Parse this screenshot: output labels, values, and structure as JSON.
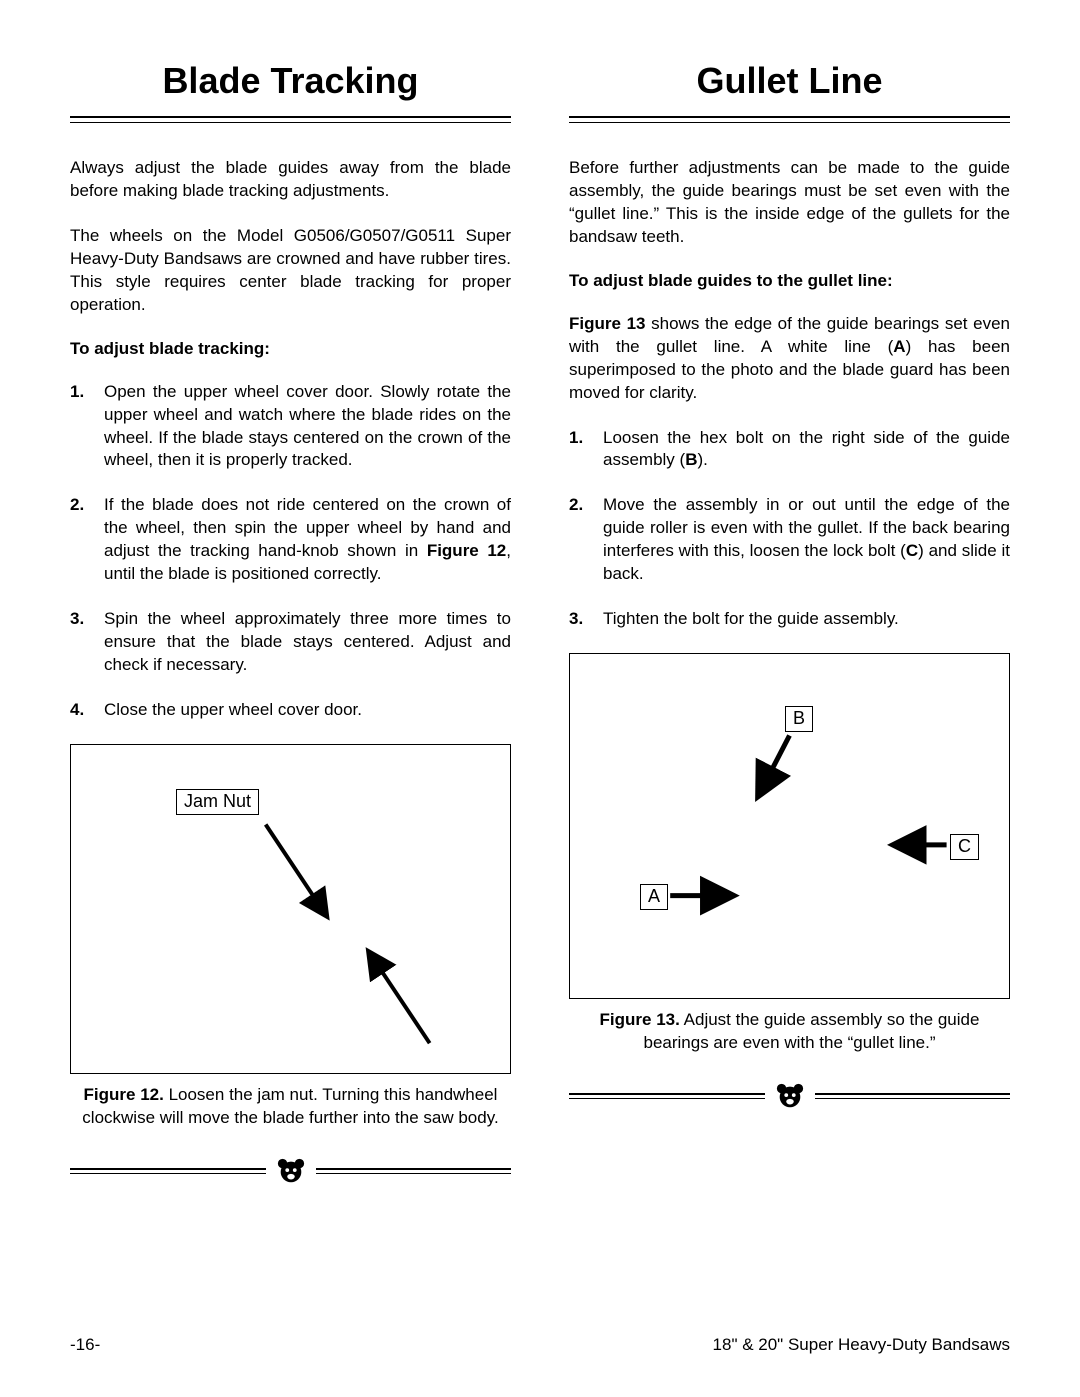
{
  "left": {
    "title": "Blade Tracking",
    "intro1": "Always adjust the blade guides away from the blade before making blade tracking adjustments.",
    "intro2": "The wheels on the Model G0506/G0507/G0511 Super Heavy-Duty Bandsaws are crowned and have rubber tires. This style requires center blade tracking for proper operation.",
    "subhead": "To adjust blade tracking:",
    "steps": [
      "Open the upper wheel cover door. Slowly rotate the upper wheel and watch where the blade rides on the wheel. If the blade stays centered on the crown of the wheel, then it is properly tracked.",
      "If the blade does not ride centered on the crown of the wheel, then spin the upper wheel by hand and adjust the tracking hand-knob shown in <b>Figure 12</b>, until the blade is positioned correctly.",
      "Spin the wheel approximately three more times to ensure that the blade stays centered. Adjust and check if necessary.",
      "Close the upper wheel cover door."
    ],
    "fig12": {
      "label_jamnut": "Jam Nut",
      "caption_label": "Figure 12.",
      "caption_rest": " Loosen the jam nut. Turning this handwheel clockwise will move the blade further into the saw body."
    }
  },
  "right": {
    "title": "Gullet Line",
    "intro1": "Before further adjustments can be made to the guide assembly, the guide bearings must be set even with the “gullet line.” This is the inside edge of the gullets for the bandsaw teeth.",
    "subhead": "To adjust blade guides to the gullet line:",
    "intro2": "<b>Figure 13</b> shows the edge of the guide bearings set even with the gullet line. A white line (<b>A</b>) has been superimposed to the photo and the blade guard has been moved for clarity.",
    "steps": [
      "Loosen the hex bolt on the right side of the guide assembly (<b>B</b>).",
      "Move the assembly in or out until the edge of the guide roller is even with the gullet. If the back bearing interferes with this, loosen the lock bolt (<b>C</b>) and slide it back.",
      "Tighten the bolt for the guide assembly."
    ],
    "fig13": {
      "label_A": "A",
      "label_B": "B",
      "label_C": "C",
      "caption_label": "Figure 13.",
      "caption_rest": " Adjust the guide assembly so the guide bearings are even with the “gullet line.”"
    }
  },
  "footer": {
    "page_no": "-16-",
    "doc_title": "18\" & 20\" Super Heavy-Duty Bandsaws"
  },
  "icons": {
    "bear": "bear-icon"
  },
  "style": {
    "rule_color": "#000000",
    "bg": "#ffffff",
    "font_body_pt": 17,
    "font_title_pt": 36
  }
}
